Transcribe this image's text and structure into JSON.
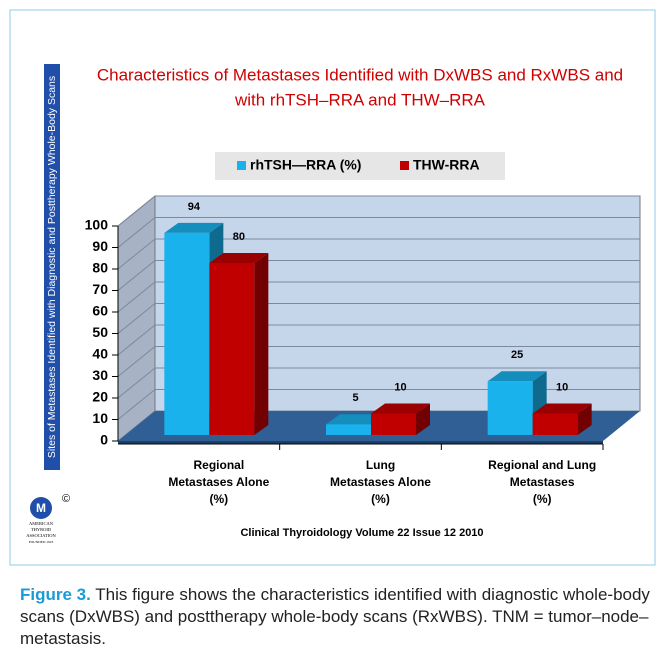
{
  "side_label": "Sites of Metastases  Identified with Diagnostic and Posttherapy Whole-Body Scans",
  "logo_text": [
    "AMERICAN",
    "THYROID",
    "ASSOCIATION",
    "FOUNDED 1923"
  ],
  "copyright": "©",
  "source": "Clinical Thyroidology Volume 22 Issue 12 2010",
  "caption": {
    "label": "Figure 3.",
    "text": " This figure shows the characteristics identified with diagnostic whole-body scans (DxWBS) and posttherapy whole-body scans (RxWBS). TNM = tumor–node–metastasis."
  },
  "chart_data": {
    "type": "bar3d",
    "title": [
      "Characteristics of Metastases Identified with DxWBS and RxWBS  and",
      "with rhTSH–RRA  and THW–RRA"
    ],
    "categories": [
      [
        "Regional",
        "Metastases  Alone",
        "(%)"
      ],
      [
        "Lung",
        "Metastases Alone",
        "(%)"
      ],
      [
        "Regional and Lung",
        "Metastases",
        "(%)"
      ]
    ],
    "series": [
      {
        "name": "rhTSH—RRA  (%)",
        "color": "#19b2ec",
        "values": [
          94,
          5,
          25
        ]
      },
      {
        "name": "THW-RRA",
        "color": "#c00000",
        "values": [
          80,
          10,
          10
        ]
      }
    ],
    "ylim": [
      0,
      100
    ],
    "yticks": [
      0,
      10,
      20,
      30,
      40,
      50,
      60,
      70,
      80,
      90,
      100
    ],
    "grid": true,
    "legend": "top"
  }
}
